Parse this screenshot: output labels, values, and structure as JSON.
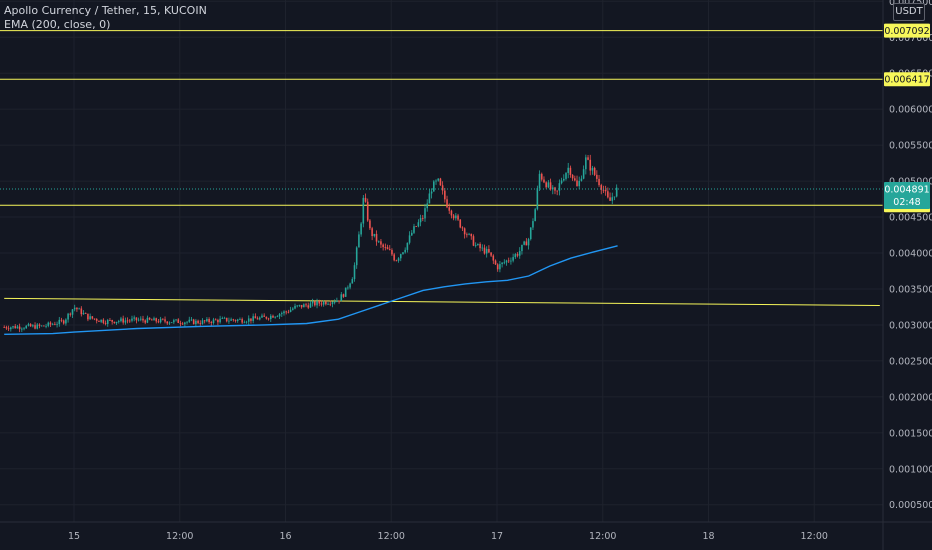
{
  "legend": {
    "symbol_line": "Apollo Currency / Tether, 15, KUCOIN",
    "indicator_line": "EMA (200, close, 0)"
  },
  "currency": "USDT",
  "colors": {
    "background": "#131722",
    "grid": "#1e222d",
    "up": "#26a69a",
    "down": "#ef5350",
    "ema": "#2196f3",
    "level_line": "#f7f75a",
    "last_price": "#26a69a",
    "axis_text": "#b2b5be"
  },
  "chart_data": {
    "type": "candlestick",
    "y_axis": {
      "min": 0.0,
      "max": 0.0075,
      "tick_labels": [
        "0.000500",
        "0.001000",
        "0.001500",
        "0.002000",
        "0.002500",
        "0.003000",
        "0.003500",
        "0.004000",
        "0.004500",
        "0.005000",
        "0.005500",
        "0.006000",
        "0.006500",
        "0.007000",
        "0.007500"
      ],
      "tick_values": [
        0.0005,
        0.001,
        0.0015,
        0.002,
        0.0025,
        0.003,
        0.0035,
        0.004,
        0.0045,
        0.005,
        0.0055,
        0.006,
        0.0065,
        0.007,
        0.0075
      ]
    },
    "x_axis": {
      "tick_labels": [
        "15",
        "12:00",
        "16",
        "12:00",
        "17",
        "12:00",
        "18",
        "12:00"
      ],
      "tick_days": [
        0.0,
        0.5,
        1.0,
        1.5,
        2.0,
        2.5,
        3.0,
        3.5
      ]
    },
    "horizontal_levels": [
      {
        "value": 0.007092,
        "label": "0.007092"
      },
      {
        "value": 0.006417,
        "label": "0.006417"
      },
      {
        "value": 0.004665,
        "label": "0.004665"
      }
    ],
    "trend_line": {
      "start": [
        -0.33,
        0.00337
      ],
      "end": [
        3.81,
        0.00327
      ]
    },
    "last_price": {
      "value": 0.004891,
      "label": "0.004891",
      "countdown": "02:48"
    },
    "price_path": [
      [
        -0.33,
        0.00297
      ],
      [
        -0.15,
        0.00298
      ],
      [
        -0.05,
        0.00305
      ],
      [
        0.0,
        0.00325
      ],
      [
        0.07,
        0.0031
      ],
      [
        0.15,
        0.00305
      ],
      [
        0.3,
        0.00307
      ],
      [
        0.45,
        0.00305
      ],
      [
        0.6,
        0.00304
      ],
      [
        0.7,
        0.00307
      ],
      [
        0.8,
        0.00307
      ],
      [
        0.9,
        0.0031
      ],
      [
        1.0,
        0.00318
      ],
      [
        1.05,
        0.00325
      ],
      [
        1.15,
        0.0033
      ],
      [
        1.25,
        0.00335
      ],
      [
        1.28,
        0.00345
      ],
      [
        1.32,
        0.0037
      ],
      [
        1.36,
        0.0045
      ],
      [
        1.37,
        0.0048
      ],
      [
        1.4,
        0.0043
      ],
      [
        1.45,
        0.0041
      ],
      [
        1.5,
        0.004
      ],
      [
        1.52,
        0.0039
      ],
      [
        1.57,
        0.0041
      ],
      [
        1.6,
        0.0043
      ],
      [
        1.65,
        0.0045
      ],
      [
        1.69,
        0.0049
      ],
      [
        1.72,
        0.005
      ],
      [
        1.76,
        0.0047
      ],
      [
        1.8,
        0.0045
      ],
      [
        1.85,
        0.0043
      ],
      [
        1.9,
        0.0041
      ],
      [
        1.96,
        0.004
      ],
      [
        2.0,
        0.0038
      ],
      [
        2.05,
        0.0039
      ],
      [
        2.1,
        0.004
      ],
      [
        2.15,
        0.0042
      ],
      [
        2.18,
        0.0046
      ],
      [
        2.2,
        0.0051
      ],
      [
        2.25,
        0.0049
      ],
      [
        2.28,
        0.0048
      ],
      [
        2.3,
        0.005
      ],
      [
        2.34,
        0.0052
      ],
      [
        2.38,
        0.0049
      ],
      [
        2.42,
        0.0053
      ],
      [
        2.46,
        0.0051
      ],
      [
        2.5,
        0.0049
      ],
      [
        2.53,
        0.0047
      ],
      [
        2.56,
        0.00486
      ],
      [
        2.57,
        0.00489
      ]
    ],
    "ema_path": [
      [
        -0.33,
        0.00287
      ],
      [
        -0.1,
        0.00288
      ],
      [
        0.0,
        0.0029
      ],
      [
        0.3,
        0.00295
      ],
      [
        0.6,
        0.00298
      ],
      [
        0.9,
        0.003
      ],
      [
        1.1,
        0.00302
      ],
      [
        1.25,
        0.00308
      ],
      [
        1.35,
        0.00318
      ],
      [
        1.45,
        0.00328
      ],
      [
        1.55,
        0.00338
      ],
      [
        1.65,
        0.00348
      ],
      [
        1.75,
        0.00353
      ],
      [
        1.85,
        0.00357
      ],
      [
        1.95,
        0.0036
      ],
      [
        2.05,
        0.00362
      ],
      [
        2.15,
        0.00368
      ],
      [
        2.25,
        0.00382
      ],
      [
        2.35,
        0.00393
      ],
      [
        2.45,
        0.00401
      ],
      [
        2.57,
        0.0041
      ]
    ]
  }
}
